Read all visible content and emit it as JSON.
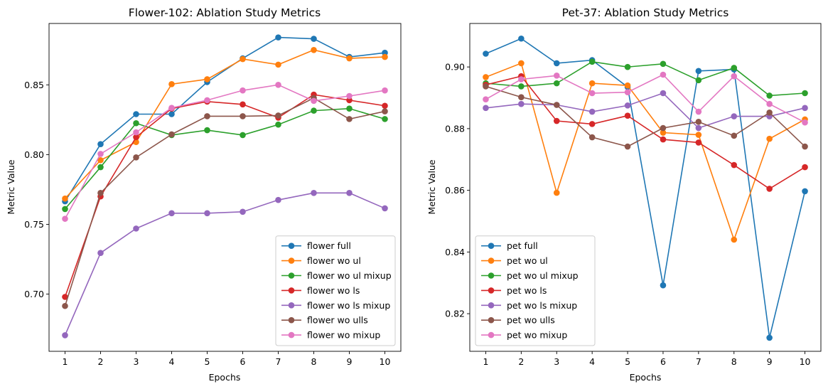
{
  "chart_data": [
    {
      "type": "line",
      "title": "Flower-102: Ablation Study Metrics",
      "xlabel": "Epochs",
      "ylabel": "Metric Value",
      "x": [
        1,
        2,
        3,
        4,
        5,
        6,
        7,
        8,
        9,
        10
      ],
      "xlim": [
        0.55,
        10.45
      ],
      "ylim": [
        0.659,
        0.894
      ],
      "yticks": [
        0.7,
        0.75,
        0.8,
        0.85
      ],
      "ytick_labels": [
        "0.70",
        "0.75",
        "0.80",
        "0.85"
      ],
      "xtick_labels": [
        "1",
        "2",
        "3",
        "4",
        "5",
        "6",
        "7",
        "8",
        "9",
        "10"
      ],
      "grid": false,
      "legend_position": "lower-right",
      "series": [
        {
          "name": "flower full",
          "color": "#1f77b4",
          "values": [
            0.7665,
            0.8075,
            0.829,
            0.829,
            0.852,
            0.869,
            0.884,
            0.883,
            0.87,
            0.873
          ]
        },
        {
          "name": "flower wo ul",
          "color": "#ff7f0e",
          "values": [
            0.7685,
            0.796,
            0.809,
            0.8505,
            0.854,
            0.8685,
            0.8645,
            0.875,
            0.869,
            0.87
          ]
        },
        {
          "name": "flower wo ul mixup",
          "color": "#2ca02c",
          "values": [
            0.761,
            0.791,
            0.8225,
            0.814,
            0.8175,
            0.814,
            0.8215,
            0.8315,
            0.833,
            0.8255
          ]
        },
        {
          "name": "flower wo ls",
          "color": "#d62728",
          "values": [
            0.698,
            0.77,
            0.8125,
            0.833,
            0.838,
            0.836,
            0.8265,
            0.843,
            0.839,
            0.835
          ]
        },
        {
          "name": "flower wo ls mixup",
          "color": "#9467bd",
          "values": [
            0.6705,
            0.7295,
            0.747,
            0.758,
            0.758,
            0.759,
            0.7675,
            0.7725,
            0.7725,
            0.7615
          ]
        },
        {
          "name": "flower wo ulls",
          "color": "#8c564b",
          "values": [
            0.6915,
            0.7725,
            0.798,
            0.8145,
            0.8275,
            0.8275,
            0.828,
            0.8405,
            0.8255,
            0.831
          ]
        },
        {
          "name": "flower wo mixup",
          "color": "#e377c2",
          "values": [
            0.754,
            0.8005,
            0.816,
            0.8335,
            0.839,
            0.846,
            0.85,
            0.8385,
            0.842,
            0.846
          ]
        }
      ]
    },
    {
      "type": "line",
      "title": "Pet-37: Ablation Study Metrics",
      "xlabel": "Epochs",
      "ylabel": "Metric Value",
      "x": [
        1,
        2,
        3,
        4,
        5,
        6,
        7,
        8,
        9,
        10
      ],
      "xlim": [
        0.55,
        10.45
      ],
      "ylim": [
        0.8078,
        0.9141
      ],
      "yticks": [
        0.82,
        0.84,
        0.86,
        0.88,
        0.9
      ],
      "ytick_labels": [
        "0.82",
        "0.84",
        "0.86",
        "0.88",
        "0.90"
      ],
      "xtick_labels": [
        "1",
        "2",
        "3",
        "4",
        "5",
        "6",
        "7",
        "8",
        "9",
        "10"
      ],
      "grid": false,
      "legend_position": "lower-left",
      "series": [
        {
          "name": "pet full",
          "color": "#1f77b4",
          "values": [
            0.9043,
            0.9092,
            0.9012,
            0.9022,
            0.8935,
            0.8292,
            0.8987,
            0.8992,
            0.8122,
            0.8597
          ]
        },
        {
          "name": "pet wo ul",
          "color": "#ff7f0e",
          "values": [
            0.8967,
            0.9012,
            0.8592,
            0.8947,
            0.894,
            0.8787,
            0.878,
            0.844,
            0.8767,
            0.883
          ]
        },
        {
          "name": "pet wo ul mixup",
          "color": "#2ca02c",
          "values": [
            0.8947,
            0.8937,
            0.8947,
            0.9017,
            0.9,
            0.901,
            0.8957,
            0.8997,
            0.8907,
            0.8915
          ]
        },
        {
          "name": "pet wo ls",
          "color": "#d62728",
          "values": [
            0.8942,
            0.897,
            0.8825,
            0.8815,
            0.8842,
            0.8765,
            0.8755,
            0.8682,
            0.8605,
            0.8675
          ]
        },
        {
          "name": "pet wo ls mixup",
          "color": "#9467bd",
          "values": [
            0.8867,
            0.888,
            0.8877,
            0.8855,
            0.8875,
            0.8915,
            0.8802,
            0.884,
            0.884,
            0.8867
          ]
        },
        {
          "name": "pet wo ulls",
          "color": "#8c564b",
          "values": [
            0.8937,
            0.8902,
            0.8877,
            0.8772,
            0.8742,
            0.8802,
            0.8822,
            0.8777,
            0.8852,
            0.8742
          ]
        },
        {
          "name": "pet wo mixup",
          "color": "#e377c2",
          "values": [
            0.8895,
            0.896,
            0.8972,
            0.8915,
            0.8918,
            0.8975,
            0.8855,
            0.897,
            0.888,
            0.882
          ]
        }
      ]
    }
  ]
}
